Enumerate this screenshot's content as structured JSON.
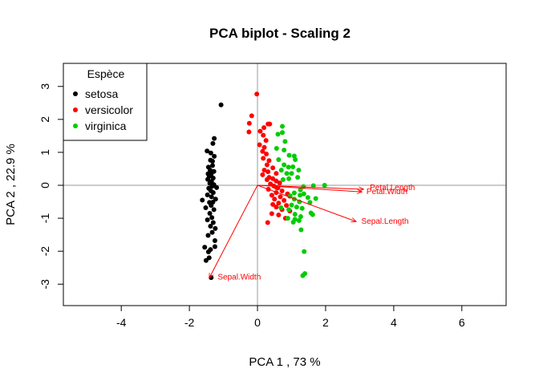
{
  "chart_data": {
    "type": "scatter",
    "title": "PCA biplot - Scaling 2",
    "xlabel": "PCA  1 ,  73 %",
    "ylabel": "PCA  2 ,  22.9 %",
    "xlim": [
      -5.7,
      7.3
    ],
    "ylim": [
      -3.65,
      3.7
    ],
    "xticks": [
      -4,
      -2,
      0,
      2,
      4,
      6
    ],
    "yticks": [
      -3,
      -2,
      -1,
      0,
      1,
      2,
      3
    ],
    "xtick_labels": [
      "-4",
      "-2",
      "0",
      "2",
      "4",
      "6"
    ],
    "ytick_labels": [
      "-3",
      "-2",
      "-1",
      "0",
      "1",
      "2",
      "3"
    ],
    "reference_lines": {
      "x": 0,
      "y": 0,
      "color": "#999999"
    },
    "legend": {
      "title": "Espèce",
      "position": "top-left",
      "entries": [
        {
          "name": "setosa",
          "color": "#000000"
        },
        {
          "name": "versicolor",
          "color": "#ff0000"
        },
        {
          "name": "virginica",
          "color": "#00cc00"
        }
      ]
    },
    "series": [
      {
        "name": "setosa",
        "color": "#000000",
        "points": [
          [
            -1.07,
            2.44
          ],
          [
            -1.27,
            1.42
          ],
          [
            -1.31,
            1.27
          ],
          [
            -1.48,
            1.04
          ],
          [
            -1.37,
            0.98
          ],
          [
            -1.27,
            0.88
          ],
          [
            -1.38,
            0.76
          ],
          [
            -1.44,
            0.55
          ],
          [
            -1.32,
            0.6
          ],
          [
            -1.39,
            0.46
          ],
          [
            -1.28,
            0.42
          ],
          [
            -1.36,
            0.33
          ],
          [
            -1.42,
            0.27
          ],
          [
            -1.3,
            0.22
          ],
          [
            -1.46,
            0.18
          ],
          [
            -1.35,
            0.12
          ],
          [
            -1.4,
            0.06
          ],
          [
            -1.28,
            0.02
          ],
          [
            -1.33,
            -0.03
          ],
          [
            -1.43,
            -0.09
          ],
          [
            -1.37,
            -0.17
          ],
          [
            -1.3,
            -0.22
          ],
          [
            -1.62,
            -0.45
          ],
          [
            -1.47,
            -0.29
          ],
          [
            -1.35,
            -0.35
          ],
          [
            -1.23,
            -0.42
          ],
          [
            -1.41,
            -0.52
          ],
          [
            -1.36,
            -0.61
          ],
          [
            -1.52,
            -0.68
          ],
          [
            -1.28,
            -0.74
          ],
          [
            -1.4,
            -0.85
          ],
          [
            -1.34,
            -0.98
          ],
          [
            -1.47,
            -1.05
          ],
          [
            -1.3,
            -1.13
          ],
          [
            -1.38,
            -1.24
          ],
          [
            -1.24,
            -1.31
          ],
          [
            -1.33,
            -1.43
          ],
          [
            -1.45,
            -1.52
          ],
          [
            -1.25,
            -1.68
          ],
          [
            -1.55,
            -1.88
          ],
          [
            -1.44,
            -2.02
          ],
          [
            -1.38,
            -1.95
          ],
          [
            -1.42,
            -2.2
          ],
          [
            -1.51,
            -2.28
          ],
          [
            -1.25,
            -1.86
          ],
          [
            -1.36,
            -2.8
          ],
          [
            -1.31,
            -0.51
          ],
          [
            -1.2,
            -0.07
          ],
          [
            -1.45,
            0.35
          ],
          [
            -1.32,
            0.73
          ]
        ]
      },
      {
        "name": "versicolor",
        "color": "#ff0000",
        "points": [
          [
            -0.02,
            2.77
          ],
          [
            -0.17,
            2.11
          ],
          [
            0.31,
            1.86
          ],
          [
            0.36,
            1.86
          ],
          [
            -0.24,
            1.88
          ],
          [
            0.19,
            1.75
          ],
          [
            0.08,
            1.64
          ],
          [
            -0.25,
            1.62
          ],
          [
            0.17,
            1.52
          ],
          [
            0.25,
            1.36
          ],
          [
            0.06,
            1.23
          ],
          [
            0.2,
            1.15
          ],
          [
            0.15,
            1.03
          ],
          [
            0.26,
            0.95
          ],
          [
            0.17,
            0.82
          ],
          [
            0.34,
            0.75
          ],
          [
            0.28,
            0.62
          ],
          [
            0.45,
            0.53
          ],
          [
            0.2,
            0.46
          ],
          [
            0.31,
            0.41
          ],
          [
            0.55,
            0.36
          ],
          [
            0.15,
            0.32
          ],
          [
            0.34,
            0.24
          ],
          [
            0.45,
            0.2
          ],
          [
            0.28,
            0.17
          ],
          [
            0.55,
            0.13
          ],
          [
            0.65,
            0.07
          ],
          [
            0.38,
            0.04
          ],
          [
            0.48,
            -0.02
          ],
          [
            0.6,
            -0.08
          ],
          [
            0.32,
            -0.12
          ],
          [
            0.72,
            -0.17
          ],
          [
            0.55,
            -0.22
          ],
          [
            0.88,
            -0.26
          ],
          [
            0.42,
            -0.3
          ],
          [
            0.67,
            -0.35
          ],
          [
            0.95,
            -0.33
          ],
          [
            0.5,
            -0.42
          ],
          [
            0.78,
            -0.46
          ],
          [
            0.62,
            -0.54
          ],
          [
            0.45,
            -0.58
          ],
          [
            0.85,
            -0.61
          ],
          [
            0.55,
            -0.66
          ],
          [
            0.72,
            -0.74
          ],
          [
            0.95,
            -0.78
          ],
          [
            0.62,
            -0.9
          ],
          [
            0.42,
            -0.86
          ],
          [
            0.82,
            -1.0
          ],
          [
            0.3,
            -1.13
          ],
          [
            0.56,
            -0.07
          ]
        ]
      },
      {
        "name": "virginica",
        "color": "#00cc00",
        "points": [
          [
            0.73,
            1.79
          ],
          [
            0.73,
            1.6
          ],
          [
            0.6,
            1.55
          ],
          [
            0.81,
            1.33
          ],
          [
            0.56,
            1.12
          ],
          [
            0.78,
            1.07
          ],
          [
            0.93,
            0.91
          ],
          [
            0.62,
            0.78
          ],
          [
            0.78,
            0.62
          ],
          [
            0.91,
            0.55
          ],
          [
            1.08,
            0.89
          ],
          [
            1.11,
            0.78
          ],
          [
            1.04,
            0.56
          ],
          [
            1.21,
            0.46
          ],
          [
            0.7,
            0.46
          ],
          [
            0.86,
            0.36
          ],
          [
            1.0,
            0.36
          ],
          [
            1.18,
            0.24
          ],
          [
            0.92,
            0.2
          ],
          [
            0.75,
            0.17
          ],
          [
            1.97,
            0.0
          ],
          [
            1.64,
            -0.01
          ],
          [
            1.35,
            -0.04
          ],
          [
            1.26,
            -0.14
          ],
          [
            1.08,
            -0.23
          ],
          [
            1.36,
            -0.26
          ],
          [
            1.25,
            -0.3
          ],
          [
            0.96,
            -0.32
          ],
          [
            1.48,
            -0.37
          ],
          [
            1.08,
            -0.42
          ],
          [
            1.23,
            -0.5
          ],
          [
            1.54,
            -0.52
          ],
          [
            1.71,
            -0.4
          ],
          [
            1.0,
            -0.6
          ],
          [
            1.15,
            -0.66
          ],
          [
            1.31,
            -0.7
          ],
          [
            0.92,
            -0.74
          ],
          [
            1.1,
            -0.88
          ],
          [
            1.57,
            -0.84
          ],
          [
            1.62,
            -0.89
          ],
          [
            1.27,
            -0.95
          ],
          [
            0.89,
            -1.0
          ],
          [
            1.1,
            -1.03
          ],
          [
            1.22,
            -1.07
          ],
          [
            1.05,
            -1.12
          ],
          [
            1.28,
            -1.35
          ],
          [
            1.37,
            -2.01
          ],
          [
            1.39,
            -2.68
          ],
          [
            1.33,
            -2.74
          ],
          [
            0.69,
            -0.68
          ]
        ]
      }
    ],
    "loadings": [
      {
        "name": "Sepal.Length",
        "x": 2.9,
        "y": -1.1,
        "label_x": 3.05,
        "label_y": -1.1
      },
      {
        "name": "Sepal.Width",
        "x": -1.42,
        "y": -2.82,
        "label_x": -1.17,
        "label_y": -2.78
      },
      {
        "name": "Petal.Length",
        "x": 3.12,
        "y": -0.12,
        "label_x": 3.3,
        "label_y": -0.07
      },
      {
        "name": "Petal.Width",
        "x": 3.07,
        "y": -0.2,
        "label_x": 3.2,
        "label_y": -0.2
      }
    ],
    "loading_color": "#ff0000",
    "grid": false
  }
}
